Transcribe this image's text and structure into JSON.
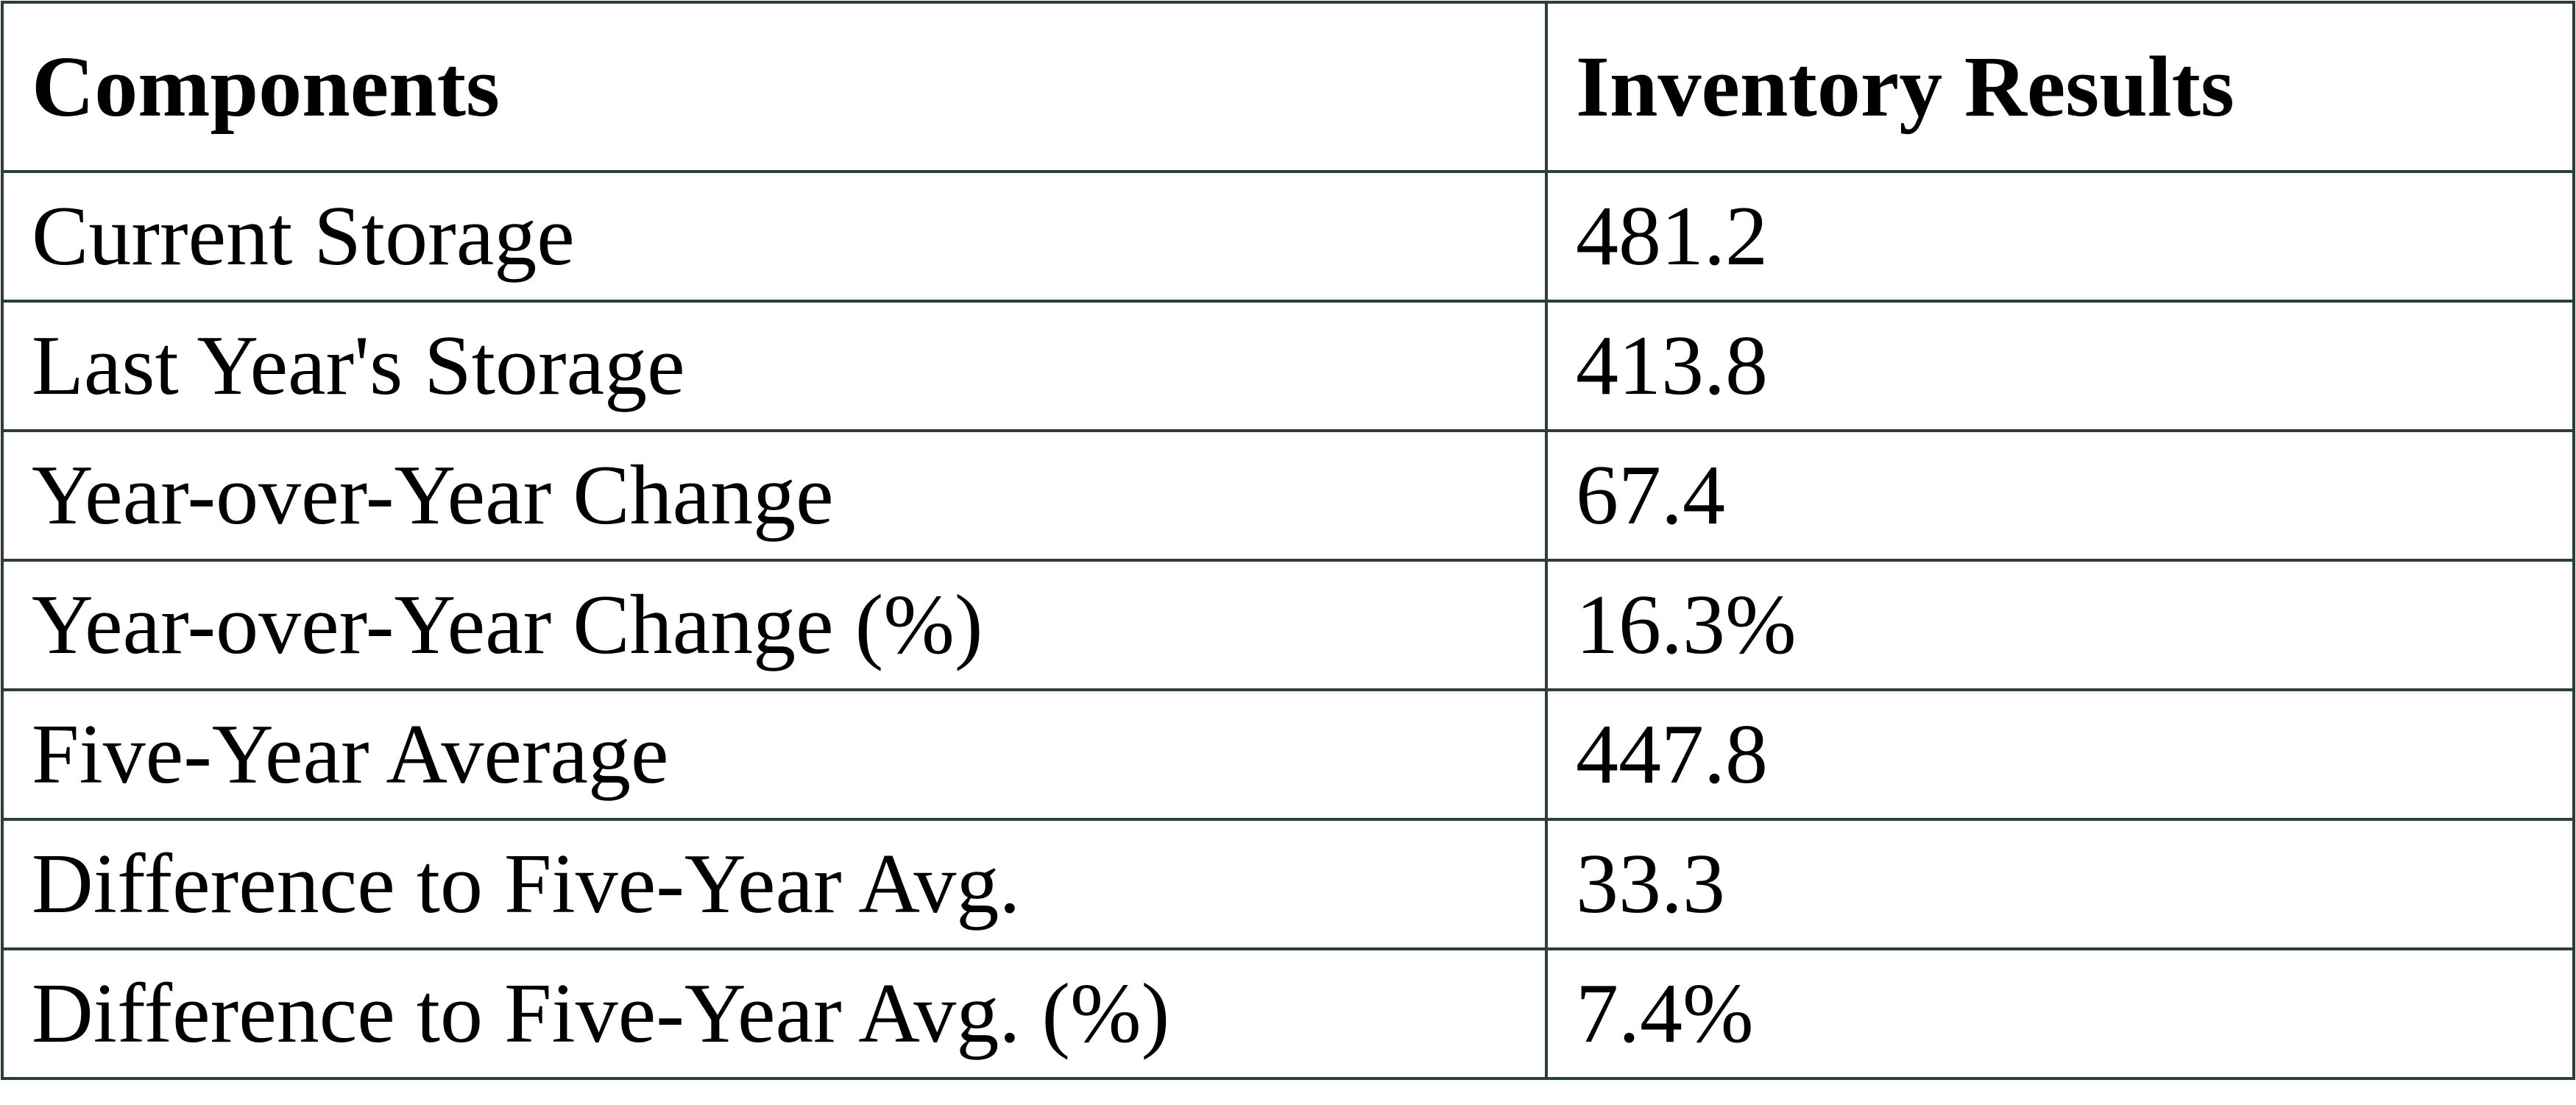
{
  "table": {
    "header": [
      "Components",
      "Inventory Results"
    ],
    "rows": [
      [
        "Current Storage",
        "481.2"
      ],
      [
        "Last Year's Storage",
        "413.8"
      ],
      [
        "Year-over-Year Change",
        "67.4"
      ],
      [
        "Year-over-Year Change (%)",
        "16.3%"
      ],
      [
        "Five-Year Average",
        "447.8"
      ],
      [
        "Difference to Five-Year Avg.",
        "33.3"
      ],
      [
        "Difference to Five-Year Avg. (%)",
        "7.4%"
      ]
    ]
  }
}
